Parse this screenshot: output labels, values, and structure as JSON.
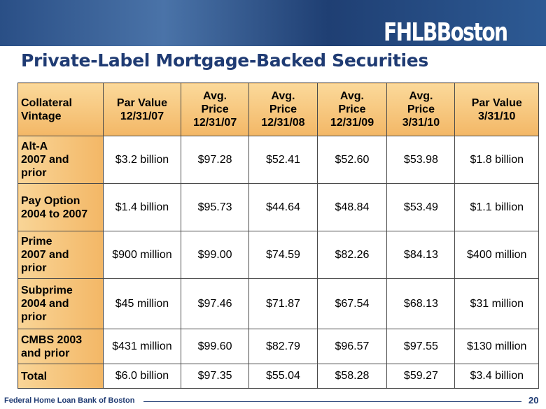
{
  "header": {
    "logo": "FHLBBoston",
    "title": "Private-Label Mortgage-Backed Securities"
  },
  "table": {
    "columns": [
      "Collateral\nVintage",
      "Par Value\n12/31/07",
      "Avg.\nPrice\n12/31/07",
      "Avg.\nPrice\n12/31/08",
      "Avg.\nPrice\n12/31/09",
      "Avg.\nPrice\n3/31/10",
      "Par Value\n3/31/10"
    ],
    "rows": [
      [
        "Alt-A\n2007 and\nprior",
        "$3.2 billion",
        "$97.28",
        "$52.41",
        "$52.60",
        "$53.98",
        "$1.8 billion"
      ],
      [
        "Pay Option\n2004 to 2007",
        "$1.4 billion",
        "$95.73",
        "$44.64",
        "$48.84",
        "$53.49",
        "$1.1 billion"
      ],
      [
        "Prime\n2007 and\nprior",
        "$900 million",
        "$99.00",
        "$74.59",
        "$82.26",
        "$84.13",
        "$400 million"
      ],
      [
        "Subprime\n2004 and\nprior",
        "$45 million",
        "$97.46",
        "$71.87",
        "$67.54",
        "$68.13",
        "$31 million"
      ],
      [
        "CMBS 2003\nand prior",
        "$431 million",
        "$99.60",
        "$82.79",
        "$96.57",
        "$97.55",
        "$130 million"
      ],
      [
        "Total",
        "$6.0 billion",
        "$97.35",
        "$55.04",
        "$58.28",
        "$59.27",
        "$3.4 billion"
      ]
    ]
  },
  "footer": {
    "organization": "Federal Home Loan Bank of Boston",
    "page": "20"
  }
}
